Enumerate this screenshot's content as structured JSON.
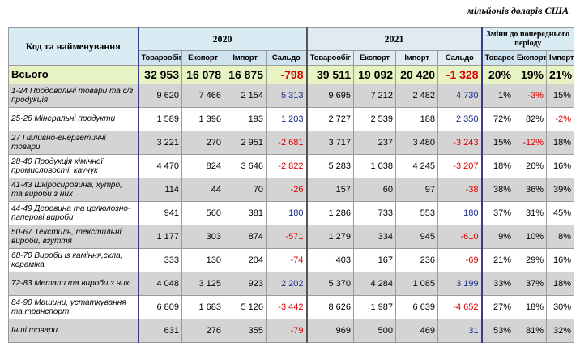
{
  "units": "мільйонів доларів США",
  "header": {
    "name_col": "Код та найменування",
    "year1": "2020",
    "year2": "2021",
    "change": "Зміни до попереднього періоду",
    "sub": [
      "Товарообіг",
      "Експорт",
      "Імпорт",
      "Сальдо",
      "Товарообіг",
      "Експорт",
      "Імпорт",
      "Сальдо",
      "Товарообіг",
      "Експорт",
      "Імпорт"
    ]
  },
  "total": {
    "name": "Всього",
    "v": [
      "32 953",
      "16 078",
      "16 875",
      "-798",
      "39 511",
      "19 092",
      "20 420",
      "-1 328",
      "20%",
      "19%",
      "21%"
    ]
  },
  "rows": [
    {
      "name": "1-24 Продовольчі товари та с/г продукція",
      "v": [
        "9 620",
        "7 466",
        "2 154",
        "5 313",
        "9 695",
        "7 212",
        "2 482",
        "4 730",
        "1%",
        "-3%",
        "15%"
      ]
    },
    {
      "name": "25-26 Мінеральні продукти",
      "v": [
        "1 589",
        "1 396",
        "193",
        "1 203",
        "2 727",
        "2 539",
        "188",
        "2 350",
        "72%",
        "82%",
        "-2%"
      ]
    },
    {
      "name": "27 Паливно-енергетичні товари",
      "v": [
        "3 221",
        "270",
        "2 951",
        "-2 681",
        "3 717",
        "237",
        "3 480",
        "-3 243",
        "15%",
        "-12%",
        "18%"
      ]
    },
    {
      "name": "28-40 Продукція хімічної промисловості, каучук",
      "v": [
        "4 470",
        "824",
        "3 646",
        "-2 822",
        "5 283",
        "1 038",
        "4 245",
        "-3 207",
        "18%",
        "26%",
        "16%"
      ]
    },
    {
      "name": "41-43 Шкіросировина, хутро, та вироби з них",
      "v": [
        "114",
        "44",
        "70",
        "-26",
        "157",
        "60",
        "97",
        "-38",
        "38%",
        "36%",
        "39%"
      ]
    },
    {
      "name": "44-49 Деревина та целюлозно-паперові вироби",
      "v": [
        "941",
        "560",
        "381",
        "180",
        "1 286",
        "733",
        "553",
        "180",
        "37%",
        "31%",
        "45%"
      ]
    },
    {
      "name": "50-67 Текстиль, текстильні вироби, взуття",
      "v": [
        "1 177",
        "303",
        "874",
        "-571",
        "1 279",
        "334",
        "945",
        "-610",
        "9%",
        "10%",
        "8%"
      ]
    },
    {
      "name": "68-70 Вироби із каміння,скла, кераміка",
      "v": [
        "333",
        "130",
        "204",
        "-74",
        "403",
        "167",
        "236",
        "-69",
        "21%",
        "29%",
        "16%"
      ]
    },
    {
      "name": "72-83 Метали та вироби з них",
      "v": [
        "4 048",
        "3 125",
        "923",
        "2 202",
        "5 370",
        "4 284",
        "1 085",
        "3 199",
        "33%",
        "37%",
        "18%"
      ]
    },
    {
      "name": "84-90 Машини, устаткування та транспорт",
      "v": [
        "6 809",
        "1 683",
        "5 126",
        "-3 442",
        "8 626",
        "1 987",
        "6 639",
        "-4 652",
        "27%",
        "18%",
        "30%"
      ]
    },
    {
      "name": "Інші товари",
      "v": [
        "631",
        "276",
        "355",
        "-79",
        "969",
        "500",
        "469",
        "31",
        "53%",
        "81%",
        "32%"
      ]
    }
  ]
}
